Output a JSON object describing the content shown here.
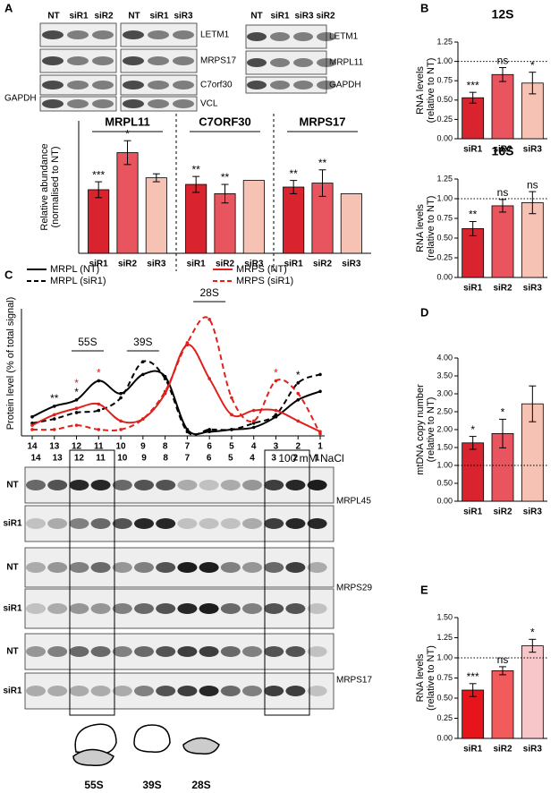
{
  "panel_labels": [
    "A",
    "B",
    "C",
    "D",
    "E"
  ],
  "blot_a": {
    "left": {
      "lanes1": [
        "NT",
        "siR1",
        "siR2"
      ],
      "lanes2": [
        "NT",
        "siR1",
        "siR3"
      ],
      "right_labels": [
        "LETM1",
        "MRPS17",
        "C7orf30",
        "VCL"
      ],
      "left_label": "GAPDH"
    },
    "right": {
      "lanes": [
        "NT",
        "siR1",
        "siR3",
        "siR2"
      ],
      "labels": [
        "LETM1",
        "MRPL11",
        "GAPDH"
      ]
    }
  },
  "blot_c": {
    "lanes": [
      "14",
      "13",
      "12",
      "11",
      "10",
      "9",
      "8",
      "7",
      "6",
      "5",
      "4",
      "3",
      "2",
      "1"
    ],
    "rows": [
      "NT",
      "siR1",
      "NT",
      "siR1",
      "NT",
      "siR1"
    ],
    "proteins": [
      "MRPL45",
      "MRPS29",
      "MRPS17"
    ]
  },
  "complexes": [
    "55S",
    "39S",
    "28S"
  ],
  "chart_data": [
    {
      "type": "group_bar",
      "y_label": [
        "Relative abundance",
        "(normalised to NT)"
      ],
      "ylim": [
        0,
        1
      ],
      "groups": [
        {
          "title": "MRPL11",
          "categories": [
            "siR1",
            "siR2",
            "siR3"
          ],
          "values": [
            0.48,
            0.76,
            0.57
          ],
          "errors": [
            0.06,
            0.09,
            0.03
          ],
          "annotations": [
            "***",
            "*",
            null
          ]
        },
        {
          "title": "C7ORF30",
          "categories": [
            "siR1",
            "siR2",
            "siR3"
          ],
          "values": [
            0.52,
            0.45,
            0.55
          ],
          "errors": [
            0.06,
            0.07,
            0
          ],
          "annotations": [
            "**",
            "**",
            null
          ]
        },
        {
          "title": "MRPS17",
          "categories": [
            "siR1",
            "siR2",
            "siR3"
          ],
          "values": [
            0.5,
            0.53,
            0.45
          ],
          "errors": [
            0.05,
            0.1,
            0
          ],
          "annotations": [
            "**",
            "**",
            null
          ]
        }
      ],
      "colors": [
        "#d9232e",
        "#e8555f",
        "#f5c2b4"
      ]
    },
    {
      "type": "bar",
      "title": "12S",
      "y_label": [
        "RNA levels",
        "(relative to NT)"
      ],
      "categories": [
        "siR1",
        "siR2",
        "siR3"
      ],
      "values": [
        0.53,
        0.83,
        0.72
      ],
      "errors": [
        0.07,
        0.09,
        0.14
      ],
      "annotations": [
        "***",
        "ns",
        "*"
      ],
      "colors": [
        "#d9232e",
        "#e8555f",
        "#f5c2b4"
      ],
      "ylim": [
        0,
        1.25
      ],
      "yticks": [
        {
          "value": 0,
          "label": "0.00"
        },
        {
          "value": 0.25,
          "label": "0.25"
        },
        {
          "value": 0.5,
          "label": "0.50"
        },
        {
          "value": 0.75,
          "label": "0.75"
        },
        {
          "value": 1,
          "label": "1.00"
        },
        {
          "value": 1.25,
          "label": "1.25"
        }
      ],
      "reference_line": 1
    },
    {
      "type": "bar",
      "title": "16S",
      "y_label": [
        "RNA levels",
        "(relative to NT)"
      ],
      "categories": [
        "siR1",
        "siR2",
        "siR3"
      ],
      "values": [
        0.62,
        0.91,
        0.95
      ],
      "errors": [
        0.09,
        0.08,
        0.14
      ],
      "annotations": [
        "**",
        "ns",
        "ns"
      ],
      "colors": [
        "#d9232e",
        "#e8555f",
        "#f5c2b4"
      ],
      "ylim": [
        0,
        1.25
      ],
      "yticks": [
        {
          "value": 0,
          "label": "0.00"
        },
        {
          "value": 0.25,
          "label": "0.25"
        },
        {
          "value": 0.5,
          "label": "0.50"
        },
        {
          "value": 0.75,
          "label": "0.75"
        },
        {
          "value": 1,
          "label": "1.00"
        },
        {
          "value": 1.25,
          "label": "1.25"
        }
      ],
      "reference_line": 1
    },
    {
      "type": "line",
      "y_label": "Protein level (% of total signal)",
      "x_label": "100 mM NaCl",
      "categories": [
        "14",
        "13",
        "12",
        "11",
        "10",
        "9",
        "8",
        "7",
        "6",
        "5",
        "4",
        "3",
        "2",
        "1"
      ],
      "ylim": [
        0,
        30
      ],
      "complex_labels": [
        "55S",
        "39S",
        "28S"
      ],
      "series": [
        {
          "name": "MRPL (NT)",
          "color": "#000000",
          "dash": false,
          "values": [
            4.5,
            7,
            8.5,
            13,
            10,
            14.5,
            14,
            1.5,
            1,
            1.5,
            2,
            4.5,
            8.5,
            10.5
          ],
          "annotations": [
            null,
            "**",
            "*",
            null,
            null,
            null,
            null,
            null,
            null,
            null,
            null,
            null,
            "*",
            null
          ]
        },
        {
          "name": "MRPL (siR1)",
          "color": "#000000",
          "dash": true,
          "values": [
            3,
            4,
            5.5,
            6,
            9,
            17.5,
            13.5,
            1,
            1.5,
            1.5,
            3,
            5,
            12.5,
            14.5
          ]
        },
        {
          "name": "MRPS (NT)",
          "color": "#e0201b",
          "dash": false,
          "values": [
            2.5,
            5,
            6.5,
            7.5,
            3.5,
            4,
            10,
            21.5,
            13.5,
            5,
            6,
            6,
            3.5,
            1
          ]
        },
        {
          "name": "MRPS (siR1)",
          "color": "#e0201b",
          "dash": true,
          "values": [
            1.5,
            1.5,
            2.5,
            1.5,
            1.5,
            4,
            10.5,
            22,
            27.5,
            9,
            3.5,
            13,
            10,
            0.5
          ],
          "annotations": [
            null,
            null,
            "*",
            "*",
            null,
            null,
            null,
            null,
            null,
            null,
            null,
            "*",
            null,
            null
          ]
        }
      ]
    },
    {
      "type": "bar",
      "y_label": [
        "mtDNA copy number",
        "(relative to NT)"
      ],
      "categories": [
        "siR1",
        "siR2",
        "siR3"
      ],
      "values": [
        1.63,
        1.89,
        2.72
      ],
      "errors": [
        0.18,
        0.4,
        0.5
      ],
      "annotations": [
        "*",
        "*",
        null
      ],
      "colors": [
        "#d9232e",
        "#e8555f",
        "#f5c2b4"
      ],
      "ylim": [
        0,
        4
      ],
      "yticks": [
        {
          "value": 0,
          "label": "0.00"
        },
        {
          "value": 0.5,
          "label": "0.50"
        },
        {
          "value": 1,
          "label": "1.00"
        },
        {
          "value": 1.5,
          "label": "1.50"
        },
        {
          "value": 2,
          "label": "2.00"
        },
        {
          "value": 2.5,
          "label": "2.50"
        },
        {
          "value": 3,
          "label": "3.00"
        },
        {
          "value": 3.5,
          "label": "3.50"
        },
        {
          "value": 4,
          "label": "4.00"
        }
      ],
      "reference_line": 1
    },
    {
      "type": "bar",
      "y_label": [
        "RNA levels",
        "(relative to NT)"
      ],
      "categories": [
        "siR1",
        "siR2",
        "siR3"
      ],
      "values": [
        0.6,
        0.84,
        1.15
      ],
      "errors": [
        0.08,
        0.05,
        0.08
      ],
      "annotations": [
        "***",
        "ns",
        "*"
      ],
      "colors": [
        "#e8141c",
        "#f25b5b",
        "#f7c6c9"
      ],
      "ylim": [
        0,
        1.5
      ],
      "yticks": [
        {
          "value": 0,
          "label": "0.00"
        },
        {
          "value": 0.25,
          "label": "0.25"
        },
        {
          "value": 0.5,
          "label": "0.50"
        },
        {
          "value": 0.75,
          "label": "0.75"
        },
        {
          "value": 1,
          "label": "1.00"
        },
        {
          "value": 1.25,
          "label": "1.25"
        },
        {
          "value": 1.5,
          "label": "1.50"
        }
      ],
      "reference_line": 1
    }
  ]
}
